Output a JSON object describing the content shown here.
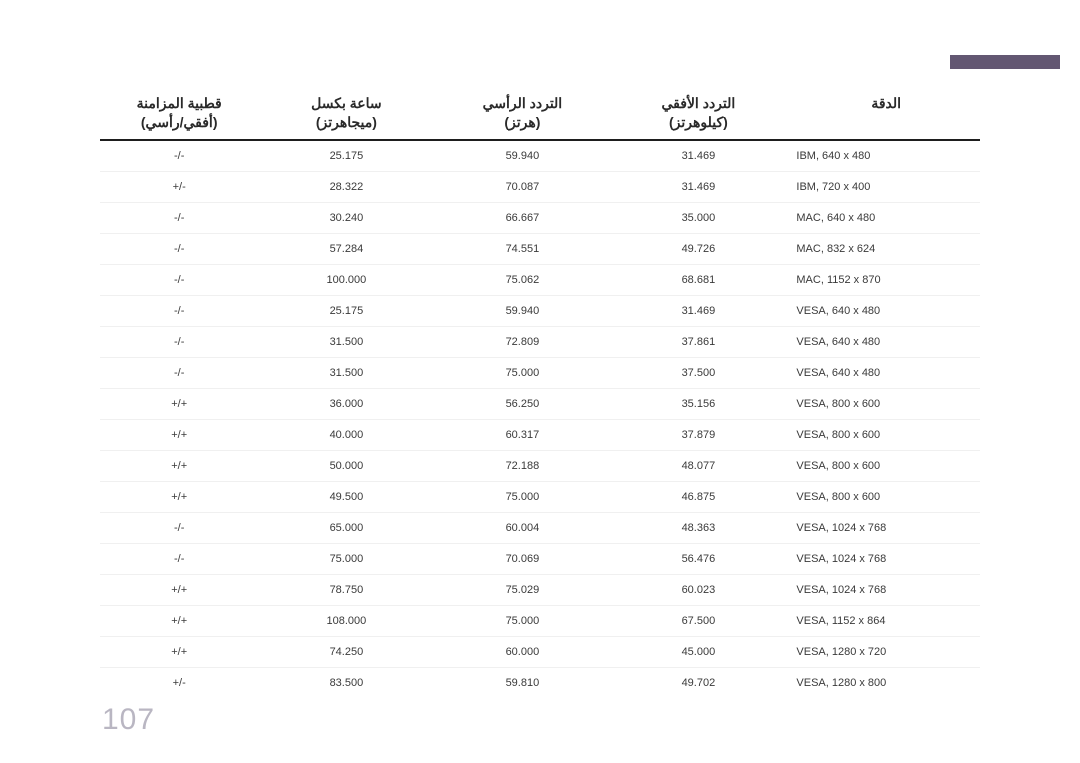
{
  "accent_bar_color": "#635772",
  "page_number": "107",
  "headers": {
    "polarity": "قطبية المزامنة",
    "polarity_sub": "(أفقي/رأسي)",
    "clock": "ساعة بكسل",
    "clock_sub": "(ميجاهرتز)",
    "vfreq": "التردد الرأسي",
    "vfreq_sub": "(هرتز)",
    "hfreq": "التردد الأفقي",
    "hfreq_sub": "(كيلوهرتز)",
    "resolution": "الدقة"
  },
  "rows": [
    {
      "polarity": "-/-",
      "clock": "25.175",
      "vfreq": "59.940",
      "hfreq": "31.469",
      "res": "IBM, 640 x 480"
    },
    {
      "polarity": "+/-",
      "clock": "28.322",
      "vfreq": "70.087",
      "hfreq": "31.469",
      "res": "IBM, 720 x 400"
    },
    {
      "polarity": "-/-",
      "clock": "30.240",
      "vfreq": "66.667",
      "hfreq": "35.000",
      "res": "MAC, 640 x 480"
    },
    {
      "polarity": "-/-",
      "clock": "57.284",
      "vfreq": "74.551",
      "hfreq": "49.726",
      "res": "MAC, 832 x 624"
    },
    {
      "polarity": "-/-",
      "clock": "100.000",
      "vfreq": "75.062",
      "hfreq": "68.681",
      "res": "MAC, 1152 x 870"
    },
    {
      "polarity": "-/-",
      "clock": "25.175",
      "vfreq": "59.940",
      "hfreq": "31.469",
      "res": "VESA, 640 x 480"
    },
    {
      "polarity": "-/-",
      "clock": "31.500",
      "vfreq": "72.809",
      "hfreq": "37.861",
      "res": "VESA, 640 x 480"
    },
    {
      "polarity": "-/-",
      "clock": "31.500",
      "vfreq": "75.000",
      "hfreq": "37.500",
      "res": "VESA, 640 x 480"
    },
    {
      "polarity": "+/+",
      "clock": "36.000",
      "vfreq": "56.250",
      "hfreq": "35.156",
      "res": "VESA, 800 x 600"
    },
    {
      "polarity": "+/+",
      "clock": "40.000",
      "vfreq": "60.317",
      "hfreq": "37.879",
      "res": "VESA, 800 x 600"
    },
    {
      "polarity": "+/+",
      "clock": "50.000",
      "vfreq": "72.188",
      "hfreq": "48.077",
      "res": "VESA, 800 x 600"
    },
    {
      "polarity": "+/+",
      "clock": "49.500",
      "vfreq": "75.000",
      "hfreq": "46.875",
      "res": "VESA, 800 x 600"
    },
    {
      "polarity": "-/-",
      "clock": "65.000",
      "vfreq": "60.004",
      "hfreq": "48.363",
      "res": "VESA, 1024 x 768"
    },
    {
      "polarity": "-/-",
      "clock": "75.000",
      "vfreq": "70.069",
      "hfreq": "56.476",
      "res": "VESA, 1024 x 768"
    },
    {
      "polarity": "+/+",
      "clock": "78.750",
      "vfreq": "75.029",
      "hfreq": "60.023",
      "res": "VESA, 1024 x 768"
    },
    {
      "polarity": "+/+",
      "clock": "108.000",
      "vfreq": "75.000",
      "hfreq": "67.500",
      "res": "VESA, 1152 x 864"
    },
    {
      "polarity": "+/+",
      "clock": "74.250",
      "vfreq": "60.000",
      "hfreq": "45.000",
      "res": "VESA, 1280 x 720"
    },
    {
      "polarity": "+/-",
      "clock": "83.500",
      "vfreq": "59.810",
      "hfreq": "49.702",
      "res": "VESA, 1280 x 800"
    }
  ]
}
